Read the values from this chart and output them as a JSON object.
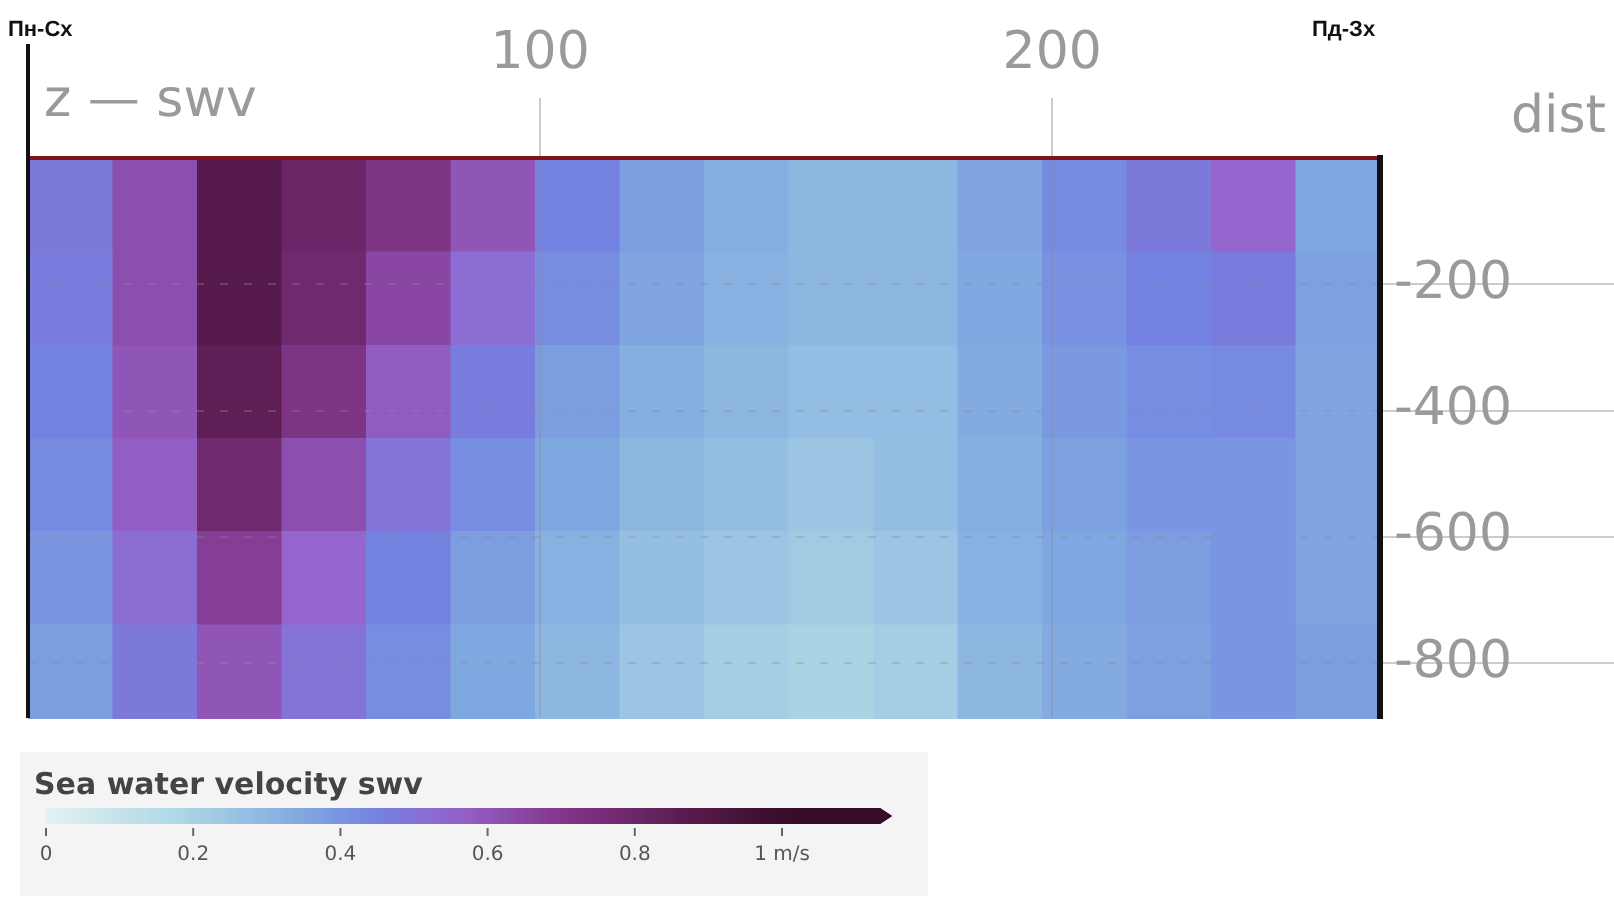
{
  "chart_data": {
    "type": "heatmap",
    "xlabel": "dist",
    "clabel": "Sea water velocity swv",
    "annotations": [
      "Пн-Сх",
      "Пд-Зх",
      "z — swv"
    ],
    "x": [
      8.25,
      24.75,
      41.25,
      57.75,
      74.25,
      90.75,
      107.25,
      123.75,
      140.25,
      156.75,
      173.25,
      189.75,
      206.25,
      222.75,
      239.25,
      255.75
    ],
    "y": [
      -74,
      -222,
      -370,
      -517,
      -665,
      -813
    ],
    "xlim": [
      0,
      264
    ],
    "xticks": [
      100,
      200
    ],
    "ylim": [
      -887,
      0
    ],
    "yticks": [
      -200,
      -400,
      -600,
      -800
    ],
    "grid": true,
    "clim": [
      0,
      1.15
    ],
    "cticks": [
      0,
      0.2,
      0.4,
      0.6,
      0.8,
      {
        "value": 1,
        "label": "1 m/s"
      }
    ],
    "cells": [
      [
        0.48,
        0.62,
        0.88,
        0.8,
        0.72,
        0.6,
        0.45,
        0.38,
        0.33,
        0.3,
        0.3,
        0.36,
        0.43,
        0.48,
        0.55,
        0.35
      ],
      [
        0.47,
        0.62,
        0.88,
        0.78,
        0.65,
        0.52,
        0.42,
        0.36,
        0.32,
        0.3,
        0.3,
        0.35,
        0.41,
        0.45,
        0.47,
        0.37
      ],
      [
        0.45,
        0.6,
        0.85,
        0.72,
        0.58,
        0.47,
        0.38,
        0.33,
        0.3,
        0.28,
        0.28,
        0.34,
        0.39,
        0.42,
        0.43,
        0.36
      ],
      [
        0.43,
        0.57,
        0.78,
        0.62,
        0.5,
        0.42,
        0.35,
        0.3,
        0.27,
        0.25,
        0.27,
        0.33,
        0.37,
        0.4,
        0.4,
        0.36
      ],
      [
        0.4,
        0.52,
        0.68,
        0.55,
        0.45,
        0.38,
        0.32,
        0.27,
        0.25,
        0.23,
        0.25,
        0.32,
        0.35,
        0.38,
        0.4,
        0.36
      ],
      [
        0.38,
        0.48,
        0.6,
        0.5,
        0.42,
        0.35,
        0.3,
        0.25,
        0.22,
        0.2,
        0.22,
        0.3,
        0.34,
        0.37,
        0.4,
        0.38
      ]
    ]
  }
}
